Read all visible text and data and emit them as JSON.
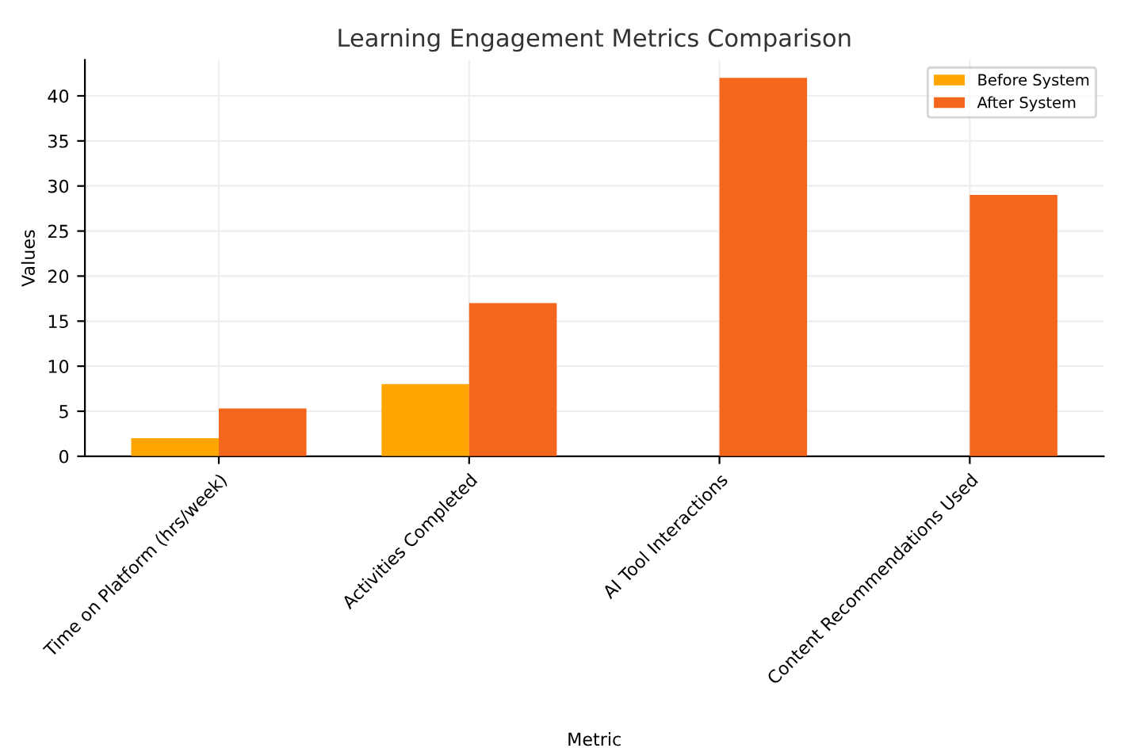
{
  "chart_data": {
    "type": "bar",
    "title": "Learning Engagement Metrics Comparison",
    "xlabel": "Metric",
    "ylabel": "Values",
    "categories": [
      "Time on Platform (hrs/week)",
      "Activities Completed",
      "AI Tool Interactions",
      "Content Recommendations Used"
    ],
    "series": [
      {
        "name": "Before System",
        "color": "#ffa500",
        "values": [
          2,
          8,
          0,
          0
        ]
      },
      {
        "name": "After System",
        "color": "#f4661b",
        "values": [
          5.3,
          17,
          42,
          29
        ]
      }
    ],
    "ylim": [
      0,
      44
    ],
    "yticks": [
      0,
      5,
      10,
      15,
      20,
      25,
      30,
      35,
      40
    ],
    "grid": true,
    "legend": "top right"
  }
}
